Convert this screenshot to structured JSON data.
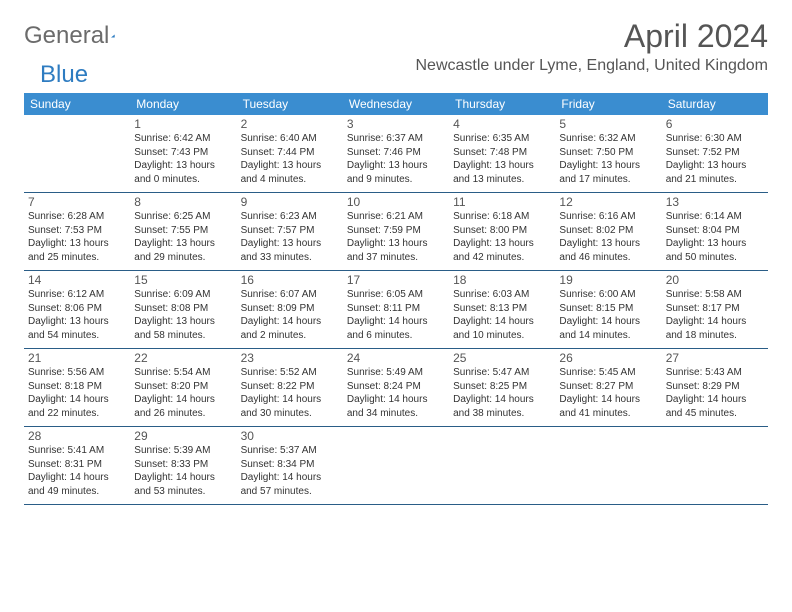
{
  "logo": {
    "text1": "General",
    "text2": "Blue"
  },
  "title": "April 2024",
  "location": "Newcastle under Lyme, England, United Kingdom",
  "header_bg": "#3a8dd0",
  "weekdays": [
    "Sunday",
    "Monday",
    "Tuesday",
    "Wednesday",
    "Thursday",
    "Friday",
    "Saturday"
  ],
  "weeks": [
    [
      null,
      {
        "n": "1",
        "sr": "Sunrise: 6:42 AM",
        "ss": "Sunset: 7:43 PM",
        "d1": "Daylight: 13 hours",
        "d2": "and 0 minutes."
      },
      {
        "n": "2",
        "sr": "Sunrise: 6:40 AM",
        "ss": "Sunset: 7:44 PM",
        "d1": "Daylight: 13 hours",
        "d2": "and 4 minutes."
      },
      {
        "n": "3",
        "sr": "Sunrise: 6:37 AM",
        "ss": "Sunset: 7:46 PM",
        "d1": "Daylight: 13 hours",
        "d2": "and 9 minutes."
      },
      {
        "n": "4",
        "sr": "Sunrise: 6:35 AM",
        "ss": "Sunset: 7:48 PM",
        "d1": "Daylight: 13 hours",
        "d2": "and 13 minutes."
      },
      {
        "n": "5",
        "sr": "Sunrise: 6:32 AM",
        "ss": "Sunset: 7:50 PM",
        "d1": "Daylight: 13 hours",
        "d2": "and 17 minutes."
      },
      {
        "n": "6",
        "sr": "Sunrise: 6:30 AM",
        "ss": "Sunset: 7:52 PM",
        "d1": "Daylight: 13 hours",
        "d2": "and 21 minutes."
      }
    ],
    [
      {
        "n": "7",
        "sr": "Sunrise: 6:28 AM",
        "ss": "Sunset: 7:53 PM",
        "d1": "Daylight: 13 hours",
        "d2": "and 25 minutes."
      },
      {
        "n": "8",
        "sr": "Sunrise: 6:25 AM",
        "ss": "Sunset: 7:55 PM",
        "d1": "Daylight: 13 hours",
        "d2": "and 29 minutes."
      },
      {
        "n": "9",
        "sr": "Sunrise: 6:23 AM",
        "ss": "Sunset: 7:57 PM",
        "d1": "Daylight: 13 hours",
        "d2": "and 33 minutes."
      },
      {
        "n": "10",
        "sr": "Sunrise: 6:21 AM",
        "ss": "Sunset: 7:59 PM",
        "d1": "Daylight: 13 hours",
        "d2": "and 37 minutes."
      },
      {
        "n": "11",
        "sr": "Sunrise: 6:18 AM",
        "ss": "Sunset: 8:00 PM",
        "d1": "Daylight: 13 hours",
        "d2": "and 42 minutes."
      },
      {
        "n": "12",
        "sr": "Sunrise: 6:16 AM",
        "ss": "Sunset: 8:02 PM",
        "d1": "Daylight: 13 hours",
        "d2": "and 46 minutes."
      },
      {
        "n": "13",
        "sr": "Sunrise: 6:14 AM",
        "ss": "Sunset: 8:04 PM",
        "d1": "Daylight: 13 hours",
        "d2": "and 50 minutes."
      }
    ],
    [
      {
        "n": "14",
        "sr": "Sunrise: 6:12 AM",
        "ss": "Sunset: 8:06 PM",
        "d1": "Daylight: 13 hours",
        "d2": "and 54 minutes."
      },
      {
        "n": "15",
        "sr": "Sunrise: 6:09 AM",
        "ss": "Sunset: 8:08 PM",
        "d1": "Daylight: 13 hours",
        "d2": "and 58 minutes."
      },
      {
        "n": "16",
        "sr": "Sunrise: 6:07 AM",
        "ss": "Sunset: 8:09 PM",
        "d1": "Daylight: 14 hours",
        "d2": "and 2 minutes."
      },
      {
        "n": "17",
        "sr": "Sunrise: 6:05 AM",
        "ss": "Sunset: 8:11 PM",
        "d1": "Daylight: 14 hours",
        "d2": "and 6 minutes."
      },
      {
        "n": "18",
        "sr": "Sunrise: 6:03 AM",
        "ss": "Sunset: 8:13 PM",
        "d1": "Daylight: 14 hours",
        "d2": "and 10 minutes."
      },
      {
        "n": "19",
        "sr": "Sunrise: 6:00 AM",
        "ss": "Sunset: 8:15 PM",
        "d1": "Daylight: 14 hours",
        "d2": "and 14 minutes."
      },
      {
        "n": "20",
        "sr": "Sunrise: 5:58 AM",
        "ss": "Sunset: 8:17 PM",
        "d1": "Daylight: 14 hours",
        "d2": "and 18 minutes."
      }
    ],
    [
      {
        "n": "21",
        "sr": "Sunrise: 5:56 AM",
        "ss": "Sunset: 8:18 PM",
        "d1": "Daylight: 14 hours",
        "d2": "and 22 minutes."
      },
      {
        "n": "22",
        "sr": "Sunrise: 5:54 AM",
        "ss": "Sunset: 8:20 PM",
        "d1": "Daylight: 14 hours",
        "d2": "and 26 minutes."
      },
      {
        "n": "23",
        "sr": "Sunrise: 5:52 AM",
        "ss": "Sunset: 8:22 PM",
        "d1": "Daylight: 14 hours",
        "d2": "and 30 minutes."
      },
      {
        "n": "24",
        "sr": "Sunrise: 5:49 AM",
        "ss": "Sunset: 8:24 PM",
        "d1": "Daylight: 14 hours",
        "d2": "and 34 minutes."
      },
      {
        "n": "25",
        "sr": "Sunrise: 5:47 AM",
        "ss": "Sunset: 8:25 PM",
        "d1": "Daylight: 14 hours",
        "d2": "and 38 minutes."
      },
      {
        "n": "26",
        "sr": "Sunrise: 5:45 AM",
        "ss": "Sunset: 8:27 PM",
        "d1": "Daylight: 14 hours",
        "d2": "and 41 minutes."
      },
      {
        "n": "27",
        "sr": "Sunrise: 5:43 AM",
        "ss": "Sunset: 8:29 PM",
        "d1": "Daylight: 14 hours",
        "d2": "and 45 minutes."
      }
    ],
    [
      {
        "n": "28",
        "sr": "Sunrise: 5:41 AM",
        "ss": "Sunset: 8:31 PM",
        "d1": "Daylight: 14 hours",
        "d2": "and 49 minutes."
      },
      {
        "n": "29",
        "sr": "Sunrise: 5:39 AM",
        "ss": "Sunset: 8:33 PM",
        "d1": "Daylight: 14 hours",
        "d2": "and 53 minutes."
      },
      {
        "n": "30",
        "sr": "Sunrise: 5:37 AM",
        "ss": "Sunset: 8:34 PM",
        "d1": "Daylight: 14 hours",
        "d2": "and 57 minutes."
      },
      null,
      null,
      null,
      null
    ]
  ]
}
